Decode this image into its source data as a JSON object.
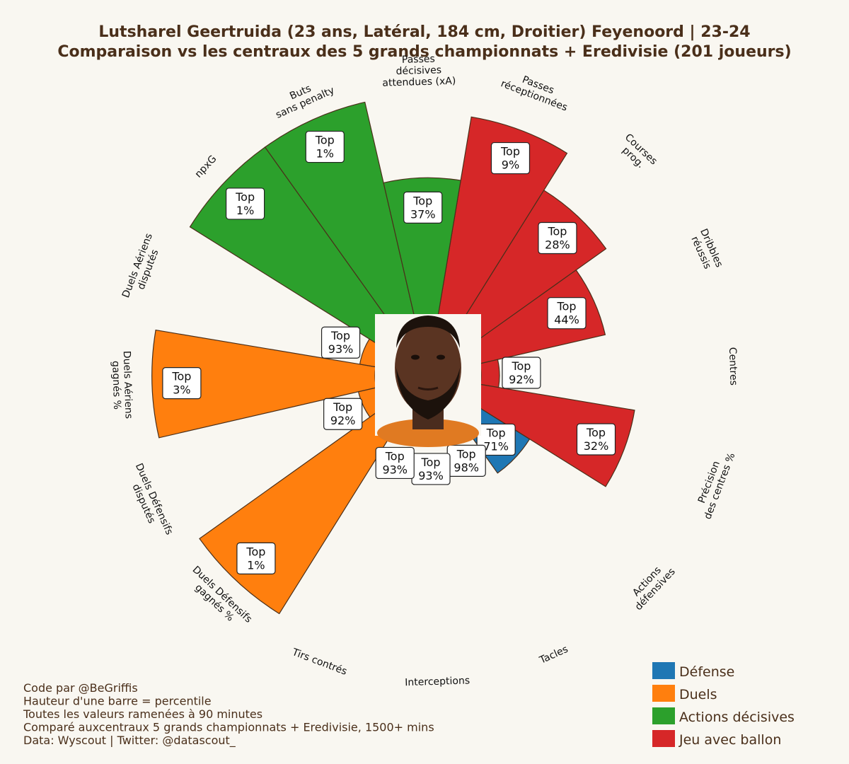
{
  "title": {
    "line1": "Lutsharel Geertruida (23 ans, Latéral, 184 cm, Droitier) Feyenoord | 23-24",
    "line2": "Comparaison vs les centraux des 5 grands championnats + Eredivisie (201 joueurs)"
  },
  "colors": {
    "Défense": "#1f77b4",
    "Duels": "#ff7f0e",
    "Actions décisives": "#2ca02c",
    "Jeu avec ballon": "#d62728",
    "background": "#f9f7f1",
    "text": "#4a2f1a"
  },
  "chart_data": {
    "type": "radial-bar",
    "value_meaning": "percentile",
    "label_prefix": "Top",
    "metrics": [
      {
        "name": "Passes\nréceptionnées",
        "group": "Jeu avec ballon",
        "percentile": 91,
        "label": "Top\n9%"
      },
      {
        "name": "Courses\nprog.",
        "group": "Jeu avec ballon",
        "percentile": 72,
        "label": "Top\n28%"
      },
      {
        "name": "Dribbles\nréussis",
        "group": "Jeu avec ballon",
        "percentile": 56,
        "label": "Top\n44%"
      },
      {
        "name": "Centres",
        "group": "Jeu avec ballon",
        "percentile": 8,
        "label": "Top\n92%"
      },
      {
        "name": "Précision\ndes centres %",
        "group": "Jeu avec ballon",
        "percentile": 68,
        "label": "Top\n32%"
      },
      {
        "name": "Actions\ndéfensives",
        "group": "Défense",
        "percentile": 29,
        "label": "Top\n71%"
      },
      {
        "name": "Tacles",
        "group": "Défense",
        "percentile": 2,
        "label": "Top\n98%"
      },
      {
        "name": "Interceptions",
        "group": "Défense",
        "percentile": 7,
        "label": "Top\n93%"
      },
      {
        "name": "Tirs contrés",
        "group": "Défense",
        "percentile": 7,
        "label": "Top\n93%"
      },
      {
        "name": "Duels Défensifs\ngagnés %",
        "group": "Duels",
        "percentile": 99,
        "label": "Top\n1%"
      },
      {
        "name": "Duels Défensifs\ndisputés",
        "group": "Duels",
        "percentile": 8,
        "label": "Top\n92%"
      },
      {
        "name": "Duels Aériens\ngagnés %",
        "group": "Duels",
        "percentile": 97,
        "label": "Top\n3%"
      },
      {
        "name": "Duels Aériens\ndisputés",
        "group": "Duels",
        "percentile": 7,
        "label": "Top\n93%"
      },
      {
        "name": "npxG",
        "group": "Actions décisives",
        "percentile": 99,
        "label": "Top\n1%"
      },
      {
        "name": "Buts\nsans penalty",
        "group": "Actions décisives",
        "percentile": 99,
        "label": "Top\n1%"
      },
      {
        "name": "Passes\ndécisives\nattendues (xA)",
        "group": "Actions décisives",
        "percentile": 63,
        "label": "Top\n37%"
      }
    ],
    "legend": [
      "Défense",
      "Duels",
      "Actions décisives",
      "Jeu avec ballon"
    ],
    "legend_position": "bottom-right"
  },
  "footer": [
    "Code par @BeGriffis",
    "Hauteur d'une barre = percentile",
    "Toutes les valeurs ramenées à 90 minutes",
    "Comparé auxcentraux 5 grands championnats + Eredivisie, 1500+ mins",
    "Data: Wyscout | Twitter: @datascout_"
  ],
  "photo": {
    "icon": "player-photo"
  }
}
